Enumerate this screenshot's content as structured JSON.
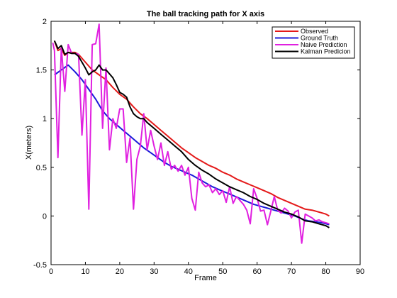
{
  "chart_data": {
    "type": "line",
    "title": "The ball tracking path for X axis",
    "xlabel": "Frame",
    "ylabel": "X(meters)",
    "xlim": [
      0,
      90
    ],
    "ylim": [
      -0.5,
      2
    ],
    "xticks": [
      0,
      10,
      20,
      30,
      40,
      50,
      60,
      70,
      80,
      90
    ],
    "yticks": [
      -0.5,
      0,
      0.5,
      1,
      1.5,
      2
    ],
    "ytick_labels": [
      "-0.5",
      "0",
      "0.5",
      "1",
      "1.5",
      "2"
    ],
    "grid": false,
    "legend_position": "top-right",
    "series": [
      {
        "name": "Observed",
        "color": "#e41a1a",
        "x": [
          1,
          2,
          3,
          4,
          5,
          6,
          7,
          8,
          9,
          10,
          12,
          14,
          16,
          18,
          20,
          22,
          24,
          26,
          28,
          30,
          32,
          34,
          36,
          38,
          40,
          42,
          44,
          46,
          48,
          50,
          52,
          54,
          56,
          58,
          60,
          62,
          64,
          66,
          68,
          70,
          72,
          74,
          76,
          78,
          80,
          81
        ],
        "values": [
          1.8,
          1.7,
          1.72,
          1.65,
          1.68,
          1.68,
          1.68,
          1.66,
          1.62,
          1.58,
          1.5,
          1.45,
          1.4,
          1.32,
          1.25,
          1.2,
          1.12,
          1.05,
          1.0,
          0.94,
          0.88,
          0.82,
          0.76,
          0.7,
          0.65,
          0.6,
          0.56,
          0.52,
          0.49,
          0.45,
          0.42,
          0.38,
          0.35,
          0.32,
          0.29,
          0.26,
          0.23,
          0.19,
          0.16,
          0.13,
          0.1,
          0.07,
          0.06,
          0.04,
          0.02,
          0.0
        ]
      },
      {
        "name": "Ground Truth",
        "color": "#1a1ad9",
        "x": [
          1,
          3,
          5,
          7,
          9,
          11,
          13,
          15,
          17,
          19,
          21,
          23,
          25,
          27,
          29,
          31,
          33,
          35,
          37,
          39,
          41,
          43,
          45,
          47,
          49,
          51,
          53,
          55,
          57,
          59,
          61,
          63,
          65,
          67,
          69,
          71,
          73,
          75,
          77,
          79,
          81
        ],
        "values": [
          1.45,
          1.5,
          1.55,
          1.48,
          1.4,
          1.3,
          1.2,
          1.08,
          1.0,
          0.94,
          0.88,
          0.82,
          0.76,
          0.7,
          0.65,
          0.6,
          0.55,
          0.51,
          0.48,
          0.45,
          0.42,
          0.38,
          0.34,
          0.3,
          0.27,
          0.24,
          0.21,
          0.18,
          0.15,
          0.12,
          0.1,
          0.08,
          0.06,
          0.04,
          0.02,
          0.0,
          -0.03,
          -0.05,
          -0.06,
          -0.07,
          -0.09
        ]
      },
      {
        "name": "Naive Prediction",
        "color": "#e020e0",
        "x": [
          0.5,
          1,
          2,
          3,
          4,
          5,
          6,
          7,
          8,
          9,
          10,
          11,
          12,
          13,
          14,
          15,
          16,
          17,
          18,
          19,
          20,
          21,
          22,
          23,
          24,
          25,
          26,
          27,
          28,
          29,
          30,
          31,
          32,
          33,
          34,
          35,
          36,
          37,
          38,
          39,
          40,
          41,
          42,
          43,
          44,
          45,
          46,
          47,
          48,
          49,
          50,
          51,
          52,
          53,
          54,
          55,
          56,
          57,
          58,
          59,
          60,
          61,
          62,
          63,
          64,
          65,
          66,
          67,
          68,
          69,
          70,
          71,
          72,
          73,
          74,
          75,
          76,
          77,
          78,
          79,
          80,
          81
        ],
        "values": [
          1.78,
          1.7,
          0.6,
          1.73,
          1.28,
          1.76,
          1.67,
          1.67,
          1.66,
          0.83,
          1.4,
          0.07,
          1.76,
          1.77,
          1.97,
          0.9,
          1.52,
          0.68,
          1.0,
          0.9,
          1.1,
          1.1,
          0.55,
          0.8,
          0.07,
          0.58,
          0.72,
          1.05,
          0.68,
          0.88,
          0.72,
          0.58,
          0.75,
          0.52,
          0.66,
          0.48,
          0.52,
          0.46,
          0.52,
          0.42,
          0.5,
          0.18,
          0.06,
          0.45,
          0.34,
          0.3,
          0.32,
          0.24,
          0.28,
          0.22,
          0.26,
          0.14,
          0.3,
          0.13,
          0.2,
          0.16,
          0.12,
          0.06,
          -0.08,
          0.28,
          0.18,
          0.05,
          0.06,
          -0.09,
          0.05,
          0.2,
          0.06,
          0.03,
          0.08,
          0.05,
          -0.02,
          0.04,
          0.06,
          -0.28,
          0.02,
          0.0,
          -0.02,
          -0.05,
          -0.04,
          -0.06,
          -0.07,
          -0.08
        ]
      },
      {
        "name": "Kalman Predicion",
        "color": "#000000",
        "x": [
          1,
          2,
          3,
          4,
          5,
          6,
          7,
          8,
          9,
          10,
          11,
          12,
          13,
          14,
          15,
          16,
          17,
          18,
          19,
          20,
          21,
          22,
          23,
          24,
          25,
          26,
          27,
          28,
          30,
          32,
          34,
          36,
          38,
          40,
          42,
          44,
          46,
          48,
          50,
          52,
          54,
          56,
          58,
          60,
          62,
          64,
          66,
          68,
          70,
          72,
          74,
          76,
          78,
          80,
          81
        ],
        "values": [
          1.8,
          1.72,
          1.75,
          1.66,
          1.68,
          1.67,
          1.67,
          1.64,
          1.58,
          1.52,
          1.45,
          1.48,
          1.5,
          1.55,
          1.5,
          1.5,
          1.46,
          1.42,
          1.35,
          1.27,
          1.25,
          1.22,
          1.12,
          1.05,
          1.02,
          1.0,
          1.0,
          0.96,
          0.9,
          0.84,
          0.78,
          0.72,
          0.66,
          0.58,
          0.52,
          0.47,
          0.43,
          0.38,
          0.34,
          0.3,
          0.27,
          0.24,
          0.2,
          0.17,
          0.13,
          0.1,
          0.07,
          0.04,
          0.02,
          -0.01,
          -0.05,
          -0.06,
          -0.08,
          -0.1,
          -0.12
        ]
      }
    ]
  }
}
